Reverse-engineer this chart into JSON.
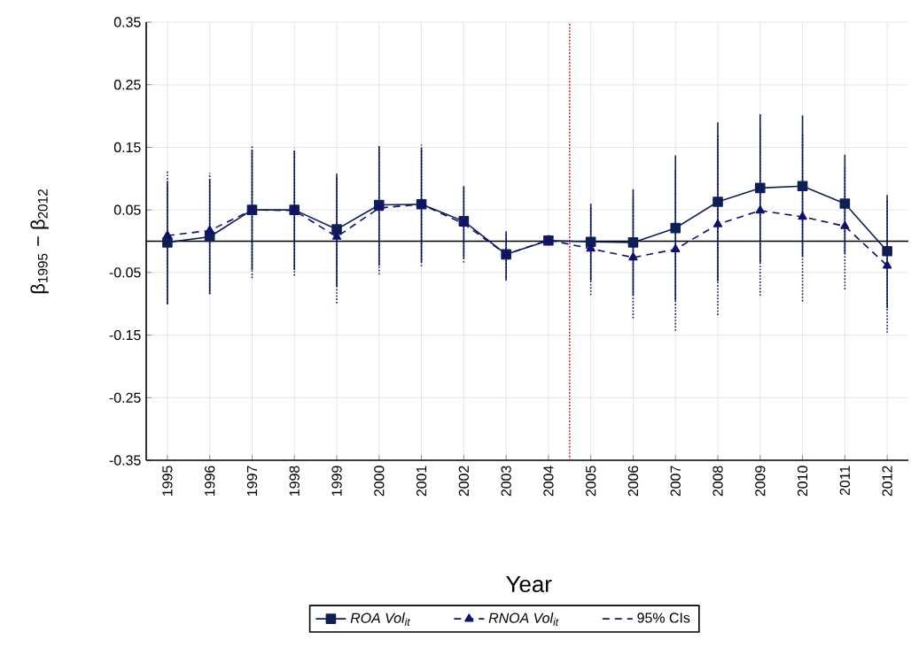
{
  "chart_data": {
    "type": "line",
    "xlabel": "Year",
    "ylabel": "β$_{1995}$ − β$_{2012}$",
    "x": [
      1995,
      1996,
      1997,
      1998,
      1999,
      2000,
      2001,
      2002,
      2003,
      2004,
      2005,
      2006,
      2007,
      2008,
      2009,
      2010,
      2011,
      2012
    ],
    "series": [
      {
        "name": "ROA Vol$_{it}$",
        "color": "#0f1f55",
        "marker": "square",
        "line_style": "solid",
        "values": [
          -0.002,
          0.007,
          0.05,
          0.05,
          0.019,
          0.058,
          0.059,
          0.032,
          -0.021,
          0.001,
          -0.001,
          -0.002,
          0.021,
          0.063,
          0.085,
          0.088,
          0.06,
          -0.016
        ],
        "errors": [
          [
            -0.101,
            0.095
          ],
          [
            -0.084,
            0.099
          ],
          [
            -0.046,
            0.146
          ],
          [
            -0.046,
            0.144
          ],
          [
            -0.073,
            0.108
          ],
          [
            -0.039,
            0.152
          ],
          [
            -0.033,
            0.148
          ],
          [
            -0.027,
            0.088
          ],
          [
            -0.061,
            0.016
          ],
          null,
          [
            -0.063,
            0.06
          ],
          [
            -0.087,
            0.083
          ],
          [
            -0.095,
            0.137
          ],
          [
            -0.064,
            0.19
          ],
          [
            -0.034,
            0.203
          ],
          [
            -0.025,
            0.201
          ],
          [
            -0.02,
            0.138
          ],
          [
            -0.107,
            0.074
          ]
        ]
      },
      {
        "name": "RNOA Vol$_{it}$",
        "color": "#10106e",
        "marker": "triangle",
        "line_style": "dashed",
        "values": [
          0.009,
          0.017,
          0.05,
          0.049,
          0.007,
          0.053,
          0.059,
          0.028,
          -0.021,
          0.002,
          -0.012,
          -0.026,
          -0.013,
          0.027,
          0.049,
          0.039,
          0.024,
          -0.039
        ],
        "errors": [
          [
            -0.099,
            0.114
          ],
          [
            -0.085,
            0.109
          ],
          [
            -0.059,
            0.153
          ],
          [
            -0.055,
            0.148
          ],
          [
            -0.099,
            0.104
          ],
          [
            -0.053,
            0.151
          ],
          [
            -0.04,
            0.154
          ],
          [
            -0.034,
            0.088
          ],
          [
            -0.063,
            0.013
          ],
          null,
          [
            -0.086,
            0.054
          ],
          [
            -0.123,
            0.071
          ],
          [
            -0.143,
            0.115
          ],
          [
            -0.118,
            0.17
          ],
          [
            -0.087,
            0.179
          ],
          [
            -0.096,
            0.172
          ],
          [
            -0.077,
            0.117
          ],
          [
            -0.146,
            0.066
          ]
        ]
      }
    ],
    "annotations": [
      "95% CIs"
    ],
    "xlim": [
      1994.5,
      2012.5
    ],
    "ylim": [
      -0.35,
      0.35
    ],
    "xticks": [
      1995,
      1996,
      1997,
      1998,
      1999,
      2000,
      2001,
      2002,
      2003,
      2004,
      2005,
      2006,
      2007,
      2008,
      2009,
      2010,
      2011,
      2012
    ],
    "yticks": [
      -0.35,
      -0.25,
      -0.15,
      -0.05,
      0.05,
      0.15,
      0.25,
      0.35
    ],
    "ref_lines": [
      {
        "axis": "y",
        "value": 0,
        "color": "#000000",
        "line_style": "solid"
      },
      {
        "axis": "x",
        "value": 2004.5,
        "color": "#e01010",
        "line_style": "dotted"
      }
    ],
    "grid": true,
    "legend": "bottom"
  }
}
